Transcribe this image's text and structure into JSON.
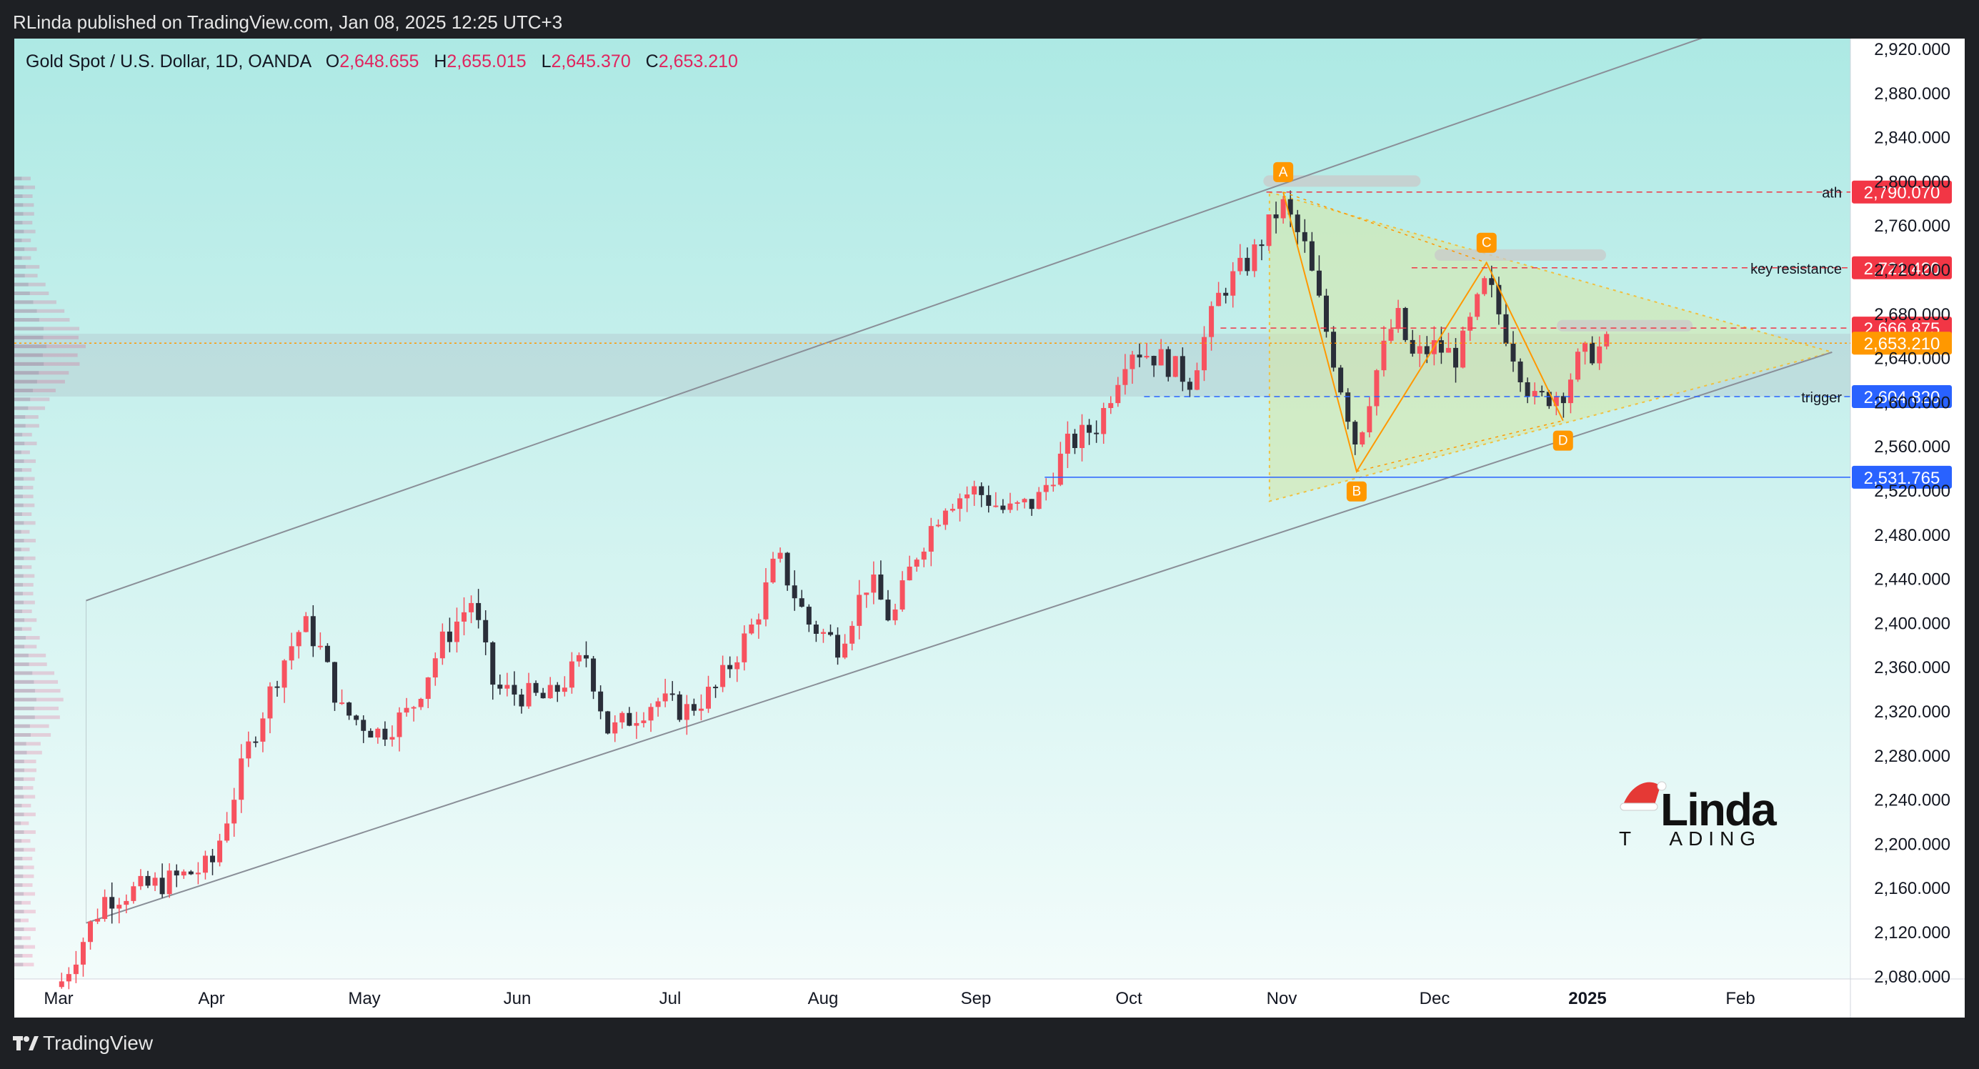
{
  "header": {
    "publisher": "RLinda published on TradingView.com, Jan 08, 2025 12:25 UTC+3"
  },
  "footer": {
    "brand": "TradingView"
  },
  "legend": {
    "symbol": "Gold Spot / U.S. Dollar, 1D, OANDA",
    "open_label": "O",
    "open": "2,648.655",
    "high_label": "H",
    "high": "2,655.015",
    "low_label": "L",
    "low": "2,645.370",
    "close_label": "C",
    "close": "2,653.210"
  },
  "watermark": {
    "line1": "Linda",
    "line2": "T   ADING"
  },
  "colors": {
    "up": "#f7525f",
    "down": "#2a2e39",
    "bg_top": "#b2ebe6",
    "bg_bottom": "#f5fdfc",
    "axis_bg": "#ffffff"
  },
  "chart_data": {
    "type": "candlestick",
    "x_ticks": [
      "Mar",
      "Apr",
      "May",
      "Jun",
      "Jul",
      "Aug",
      "Sep",
      "Oct",
      "Nov",
      "Dec",
      "2025",
      "Feb"
    ],
    "y_ticks": [
      "2,080.000",
      "2,120.000",
      "2,160.000",
      "2,200.000",
      "2,240.000",
      "2,280.000",
      "2,320.000",
      "2,360.000",
      "2,400.000",
      "2,440.000",
      "2,480.000",
      "2,520.000",
      "2,560.000",
      "2,600.000",
      "2,640.000",
      "2,680.000",
      "2,720.000",
      "2,760.000",
      "2,800.000",
      "2,840.000",
      "2,880.000",
      "2,920.000"
    ],
    "ylim": [
      2070,
      2952
    ],
    "levels": [
      {
        "value": 2790.07,
        "text": "2,790.070",
        "note": "ath",
        "color": "#f23645"
      },
      {
        "value": 2721.42,
        "text": "2,721.420",
        "note": "key resistance",
        "color": "#f23645"
      },
      {
        "value": 2666.875,
        "text": "2,666.875",
        "note": "",
        "color": "#f23645"
      },
      {
        "value": 2653.21,
        "text": "2,653.210",
        "note": "",
        "color": "#ff9800"
      },
      {
        "value": 2604.82,
        "text": "2,604.820",
        "note": "trigger",
        "color": "#2962ff"
      },
      {
        "value": 2531.765,
        "text": "2,531.765",
        "note": "",
        "color": "#2962ff"
      }
    ],
    "points": [
      {
        "label": "A",
        "month": 8.01,
        "price": 2790
      },
      {
        "label": "B",
        "month": 8.49,
        "price": 2537
      },
      {
        "label": "C",
        "month": 9.34,
        "price": 2726
      },
      {
        "label": "D",
        "month": 9.84,
        "price": 2583
      }
    ],
    "key_closes": [
      {
        "month": 0.0,
        "price": 2070
      },
      {
        "month": 0.3,
        "price": 2150
      },
      {
        "month": 0.7,
        "price": 2165
      },
      {
        "month": 1.0,
        "price": 2180
      },
      {
        "month": 1.25,
        "price": 2290
      },
      {
        "month": 1.45,
        "price": 2360
      },
      {
        "month": 1.6,
        "price": 2400
      },
      {
        "month": 1.7,
        "price": 2380
      },
      {
        "month": 1.85,
        "price": 2320
      },
      {
        "month": 2.1,
        "price": 2300
      },
      {
        "month": 2.3,
        "price": 2320
      },
      {
        "month": 2.5,
        "price": 2380
      },
      {
        "month": 2.7,
        "price": 2420
      },
      {
        "month": 2.85,
        "price": 2340
      },
      {
        "month": 3.2,
        "price": 2330
      },
      {
        "month": 3.45,
        "price": 2370
      },
      {
        "month": 3.6,
        "price": 2300
      },
      {
        "month": 3.9,
        "price": 2330
      },
      {
        "month": 4.1,
        "price": 2320
      },
      {
        "month": 4.3,
        "price": 2340
      },
      {
        "month": 4.55,
        "price": 2400
      },
      {
        "month": 4.7,
        "price": 2460
      },
      {
        "month": 4.9,
        "price": 2400
      },
      {
        "month": 5.1,
        "price": 2380
      },
      {
        "month": 5.3,
        "price": 2440
      },
      {
        "month": 5.45,
        "price": 2400
      },
      {
        "month": 5.6,
        "price": 2460
      },
      {
        "month": 5.8,
        "price": 2510
      },
      {
        "month": 6.0,
        "price": 2520
      },
      {
        "month": 6.2,
        "price": 2500
      },
      {
        "month": 6.4,
        "price": 2510
      },
      {
        "month": 6.6,
        "price": 2560
      },
      {
        "month": 6.8,
        "price": 2580
      },
      {
        "month": 7.0,
        "price": 2650
      },
      {
        "month": 7.2,
        "price": 2640
      },
      {
        "month": 7.4,
        "price": 2620
      },
      {
        "month": 7.6,
        "price": 2700
      },
      {
        "month": 7.8,
        "price": 2730
      },
      {
        "month": 8.0,
        "price": 2780
      },
      {
        "month": 8.15,
        "price": 2740
      },
      {
        "month": 8.3,
        "price": 2660
      },
      {
        "month": 8.49,
        "price": 2560
      },
      {
        "month": 8.6,
        "price": 2620
      },
      {
        "month": 8.75,
        "price": 2680
      },
      {
        "month": 8.85,
        "price": 2640
      },
      {
        "month": 9.0,
        "price": 2650
      },
      {
        "month": 9.15,
        "price": 2640
      },
      {
        "month": 9.34,
        "price": 2710
      },
      {
        "month": 9.5,
        "price": 2650
      },
      {
        "month": 9.65,
        "price": 2600
      },
      {
        "month": 9.84,
        "price": 2610
      },
      {
        "month": 9.95,
        "price": 2640
      },
      {
        "month": 10.15,
        "price": 2653
      }
    ]
  }
}
